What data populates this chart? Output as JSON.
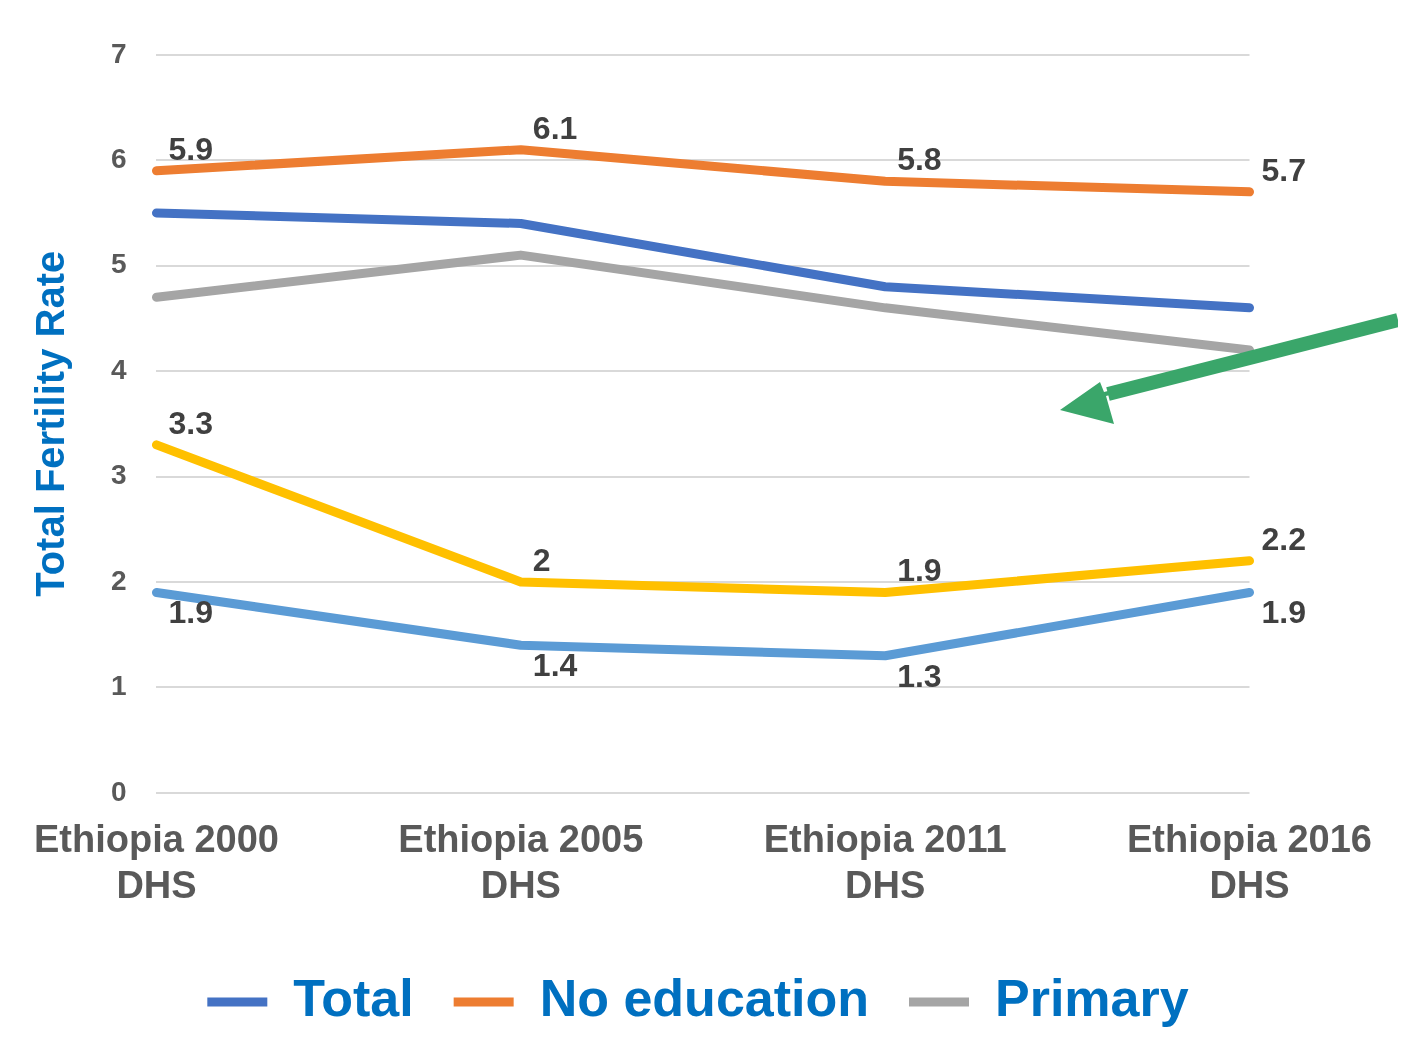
{
  "chart_data": {
    "type": "line",
    "ylabel": "Total Fertility Rate",
    "categories": [
      "Ethiopia 2000 DHS",
      "Ethiopia 2005 DHS",
      "Ethiopia 2011 DHS",
      "Ethiopia 2016 DHS"
    ],
    "series": [
      {
        "name": "Total",
        "color": "#4472c4",
        "values": [
          5.5,
          5.4,
          4.8,
          4.6
        ]
      },
      {
        "name": "No education",
        "color": "#ed7d31",
        "values": [
          5.9,
          6.1,
          5.8,
          5.7
        ],
        "value_labels": [
          "5.9",
          "6.1",
          "5.8",
          "5.7"
        ]
      },
      {
        "name": "Primary",
        "color": "#a5a5a5",
        "values": [
          4.7,
          5.1,
          4.6,
          4.2
        ]
      },
      {
        "color": "#ffc000",
        "values": [
          3.3,
          2,
          1.9,
          2.2
        ],
        "value_labels": [
          "3.3",
          "2",
          "1.9",
          "2.2"
        ]
      },
      {
        "color": "#5b9bd5",
        "values": [
          1.9,
          1.4,
          1.3,
          1.9
        ],
        "value_labels": [
          "1.9",
          "1.4",
          "1.3",
          "1.9"
        ]
      }
    ],
    "ylim": [
      0,
      7
    ],
    "yticks": [
      0,
      1,
      2,
      3,
      4,
      5,
      6,
      7
    ],
    "grid": "y",
    "legend": "bottom",
    "marker": "none",
    "line_style": "solid"
  }
}
